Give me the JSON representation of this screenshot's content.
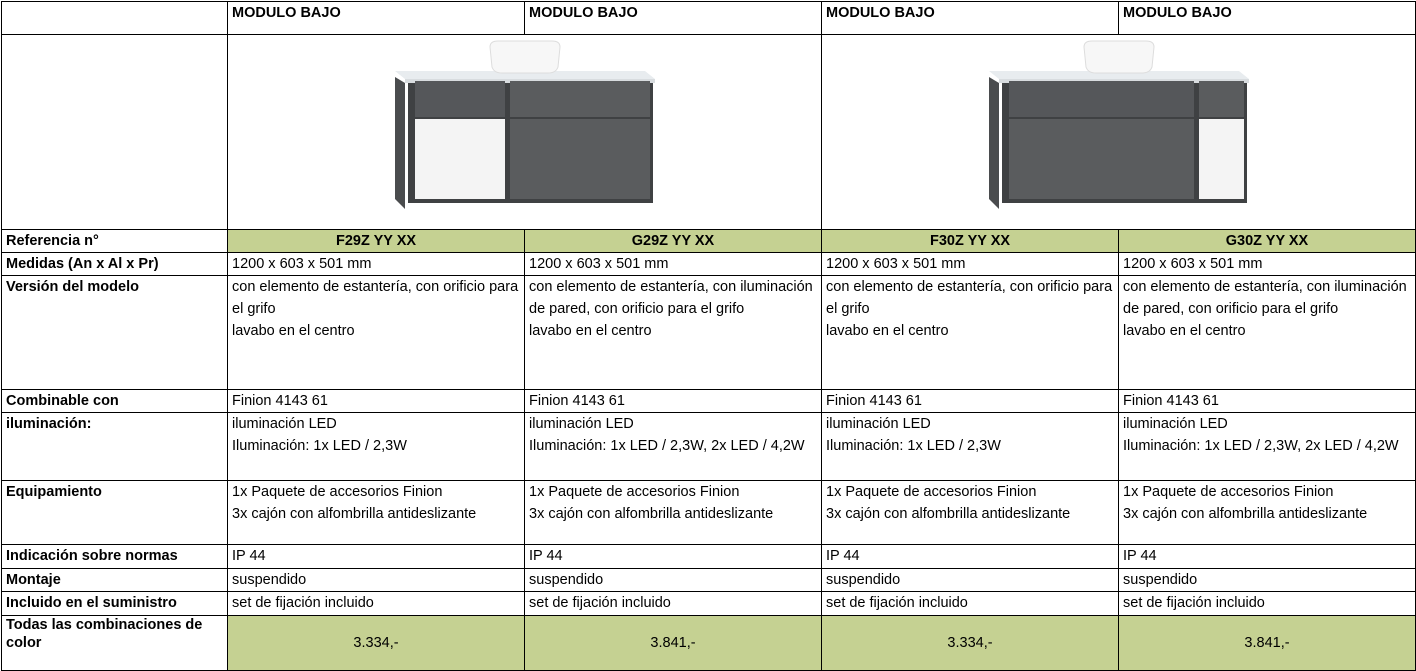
{
  "table": {
    "header": [
      "MODULO BAJO",
      "MODULO BAJO",
      "MODULO BAJO",
      "MODULO BAJO"
    ],
    "rows": [
      {
        "label": "Referencia n°",
        "cells": [
          [
            "F29Z YY XX"
          ],
          [
            "G29Z YY XX"
          ],
          [
            "F30Z YY XX"
          ],
          [
            "G30Z YY XX"
          ]
        ]
      },
      {
        "label": "Medidas (An x Al x Pr)",
        "cells": [
          [
            "1200 x 603 x 501 mm"
          ],
          [
            "1200 x 603 x 501 mm"
          ],
          [
            "1200 x 603 x 501 mm"
          ],
          [
            "1200 x 603 x 501 mm"
          ]
        ]
      },
      {
        "label": "Versión del modelo",
        "cells": [
          [
            "con elemento de estantería, con orificio para el grifo",
            "lavabo en el centro"
          ],
          [
            "con elemento de estantería, con iluminación de pared, con orificio para el grifo",
            "lavabo en el centro"
          ],
          [
            "con elemento de estantería, con orificio para el grifo",
            "lavabo en el centro"
          ],
          [
            "con elemento de estantería, con iluminación de pared, con orificio para el grifo",
            "lavabo en el centro"
          ]
        ]
      },
      {
        "label": "Combinable con",
        "cells": [
          [
            "Finion 4143 61"
          ],
          [
            "Finion 4143 61"
          ],
          [
            "Finion 4143 61"
          ],
          [
            "Finion 4143 61"
          ]
        ]
      },
      {
        "label": "iluminación:",
        "cells": [
          [
            "iluminación LED",
            "Iluminación: 1x LED / 2,3W"
          ],
          [
            "iluminación LED",
            "Iluminación: 1x LED / 2,3W, 2x LED / 4,2W"
          ],
          [
            "iluminación LED",
            "Iluminación: 1x LED / 2,3W"
          ],
          [
            "iluminación LED",
            "Iluminación: 1x LED / 2,3W, 2x LED / 4,2W"
          ]
        ]
      },
      {
        "label": "Equipamiento",
        "cells": [
          [
            "1x Paquete de accesorios Finion",
            "3x cajón con alfombrilla antideslizante"
          ],
          [
            "1x Paquete de accesorios Finion",
            "3x cajón con alfombrilla antideslizante"
          ],
          [
            "1x Paquete de accesorios Finion",
            "3x cajón con alfombrilla antideslizante"
          ],
          [
            "1x Paquete de accesorios Finion",
            "3x cajón con alfombrilla antideslizante"
          ]
        ]
      },
      {
        "label": "Indicación sobre normas",
        "cells": [
          [
            "IP 44"
          ],
          [
            "IP 44"
          ],
          [
            "IP 44"
          ],
          [
            "IP 44"
          ]
        ]
      },
      {
        "label": "Montaje",
        "cells": [
          [
            "suspendido"
          ],
          [
            "suspendido"
          ],
          [
            "suspendido"
          ],
          [
            "suspendido"
          ]
        ]
      },
      {
        "label": "Incluido en el suministro",
        "cells": [
          [
            "set de fijación incluido"
          ],
          [
            "set de fijación incluido"
          ],
          [
            "set de fijación incluido"
          ],
          [
            "set de fijación incluido"
          ]
        ]
      },
      {
        "label": "Todas las combinaciones de color",
        "cells": [
          [
            "3.334,-"
          ],
          [
            "3.841,-"
          ],
          [
            "3.334,-"
          ],
          [
            "3.841,-"
          ]
        ]
      }
    ]
  }
}
